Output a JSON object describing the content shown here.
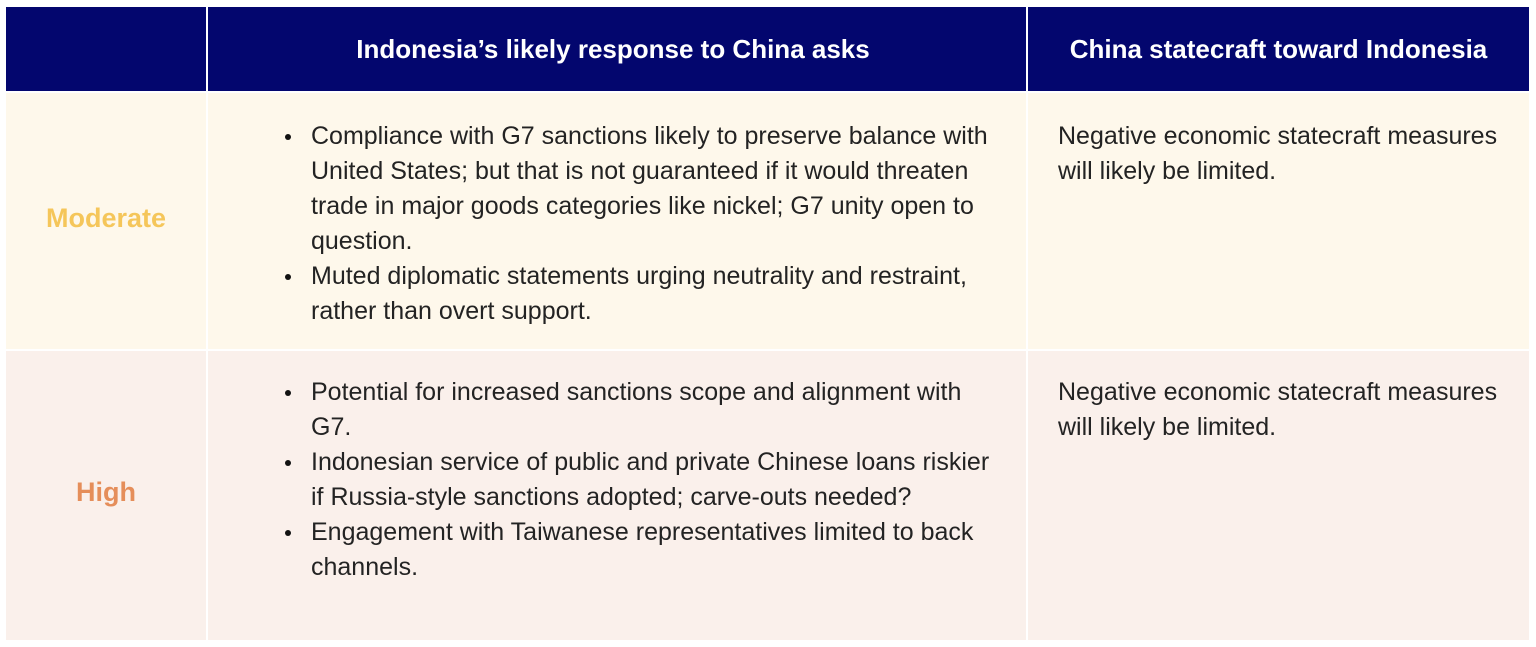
{
  "table": {
    "header": {
      "level_column": "",
      "response_column": "Indonesia’s likely response to China asks",
      "statecraft_column": "China statecraft toward Indonesia"
    },
    "rows": [
      {
        "level": "Moderate",
        "level_color": "#f5c65a",
        "row_background": "#fef8eb",
        "responses": [
          "Compliance with G7 sanctions likely to preserve balance with United States; but that is not guaranteed if it would threaten trade in major goods categories like nickel; G7 unity open to question.",
          "Muted diplomatic statements urging neutrality and restraint, rather than overt support."
        ],
        "statecraft": "Negative economic statecraft measures will likely be limited."
      },
      {
        "level": "High",
        "level_color": "#e58e5a",
        "row_background": "#faf0eb",
        "responses": [
          "Potential for increased sanctions scope and alignment with G7.",
          "Indonesian service of public and private Chinese loans riskier if Russia-style sanctions adopted; carve-outs needed?",
          "Engagement with Taiwanese representatives limited to back channels."
        ],
        "statecraft": "Negative economic statecraft measures will likely be limited."
      }
    ]
  },
  "colors": {
    "header_background": "#03066e",
    "header_text": "#ffffff",
    "body_text": "#232323"
  }
}
